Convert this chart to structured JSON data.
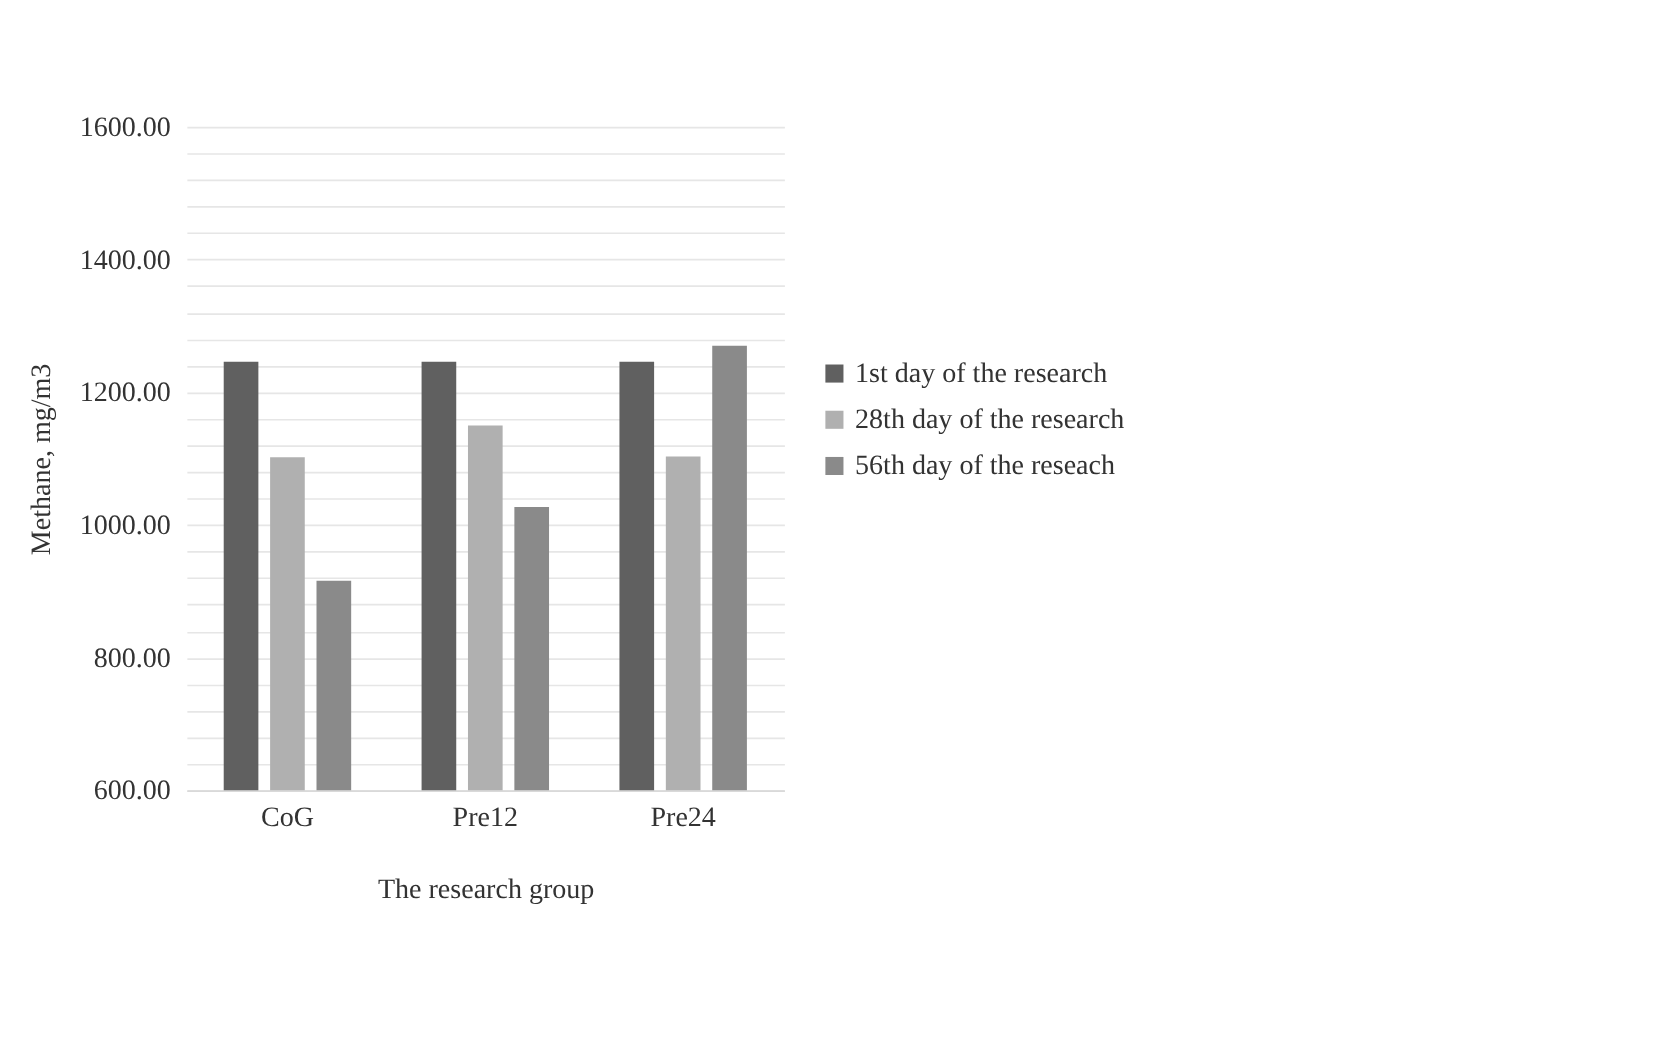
{
  "chart_data": {
    "type": "bar",
    "xlabel": "The research group",
    "ylabel": "Methane, mg/m3",
    "categories": [
      "CoG",
      "Pre12",
      "Pre24"
    ],
    "series": [
      {
        "name": "1st day of the research",
        "color": "#606060",
        "values": [
          1246,
          1246,
          1246
        ]
      },
      {
        "name": "28th day of the research",
        "color": "#b0b0b0",
        "values": [
          1102,
          1150,
          1103
        ]
      },
      {
        "name": "56th day of the reseach",
        "color": "#8a8a8a",
        "values": [
          916,
          1027,
          1270
        ]
      }
    ],
    "ylim": [
      600,
      1600
    ],
    "yticks": [
      {
        "value": 600,
        "label": "600.00"
      },
      {
        "value": 640,
        "label": null
      },
      {
        "value": 680,
        "label": null
      },
      {
        "value": 720,
        "label": null
      },
      {
        "value": 760,
        "label": null
      },
      {
        "value": 800,
        "label": "800.00"
      },
      {
        "value": 840,
        "label": null
      },
      {
        "value": 880,
        "label": null
      },
      {
        "value": 920,
        "label": null
      },
      {
        "value": 960,
        "label": null
      },
      {
        "value": 1000,
        "label": "1000.00"
      },
      {
        "value": 1040,
        "label": null
      },
      {
        "value": 1080,
        "label": null
      },
      {
        "value": 1120,
        "label": null
      },
      {
        "value": 1160,
        "label": null
      },
      {
        "value": 1200,
        "label": "1200.00"
      },
      {
        "value": 1240,
        "label": null
      },
      {
        "value": 1280,
        "label": null
      },
      {
        "value": 1320,
        "label": null
      },
      {
        "value": 1360,
        "label": null
      },
      {
        "value": 1400,
        "label": "1400.00"
      },
      {
        "value": 1440,
        "label": null
      },
      {
        "value": 1480,
        "label": null
      },
      {
        "value": 1520,
        "label": null
      },
      {
        "value": 1560,
        "label": null
      },
      {
        "value": 1600,
        "label": "1600.00"
      }
    ],
    "grid": true,
    "legend": "right"
  }
}
